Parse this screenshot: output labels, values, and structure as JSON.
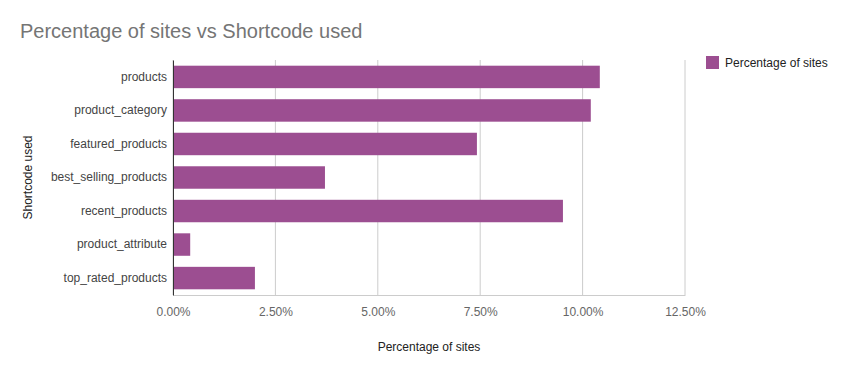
{
  "chart_data": {
    "type": "bar",
    "orientation": "horizontal",
    "title": "Percentage of sites vs Shortcode used",
    "xlabel": "Percentage of sites",
    "ylabel": "Shortcode used",
    "categories": [
      "products",
      "product_category",
      "featured_products",
      "best_selling_products",
      "recent_products",
      "product_attribute",
      "top_rated_products"
    ],
    "series": [
      {
        "name": "Percentage of sites",
        "color": "#9c4e91",
        "values": [
          10.42,
          10.2,
          7.42,
          3.71,
          9.52,
          0.42,
          2.0
        ]
      }
    ],
    "xlim": [
      0,
      12.5
    ],
    "xticks": [
      {
        "value": 0,
        "label": "0.00%"
      },
      {
        "value": 2.5,
        "label": "2.50%"
      },
      {
        "value": 5,
        "label": "5.00%"
      },
      {
        "value": 7.5,
        "label": "7.50%"
      },
      {
        "value": 10,
        "label": "10.00%"
      },
      {
        "value": 12.5,
        "label": "12.50%"
      }
    ],
    "grid": true,
    "legend": "top-right"
  }
}
